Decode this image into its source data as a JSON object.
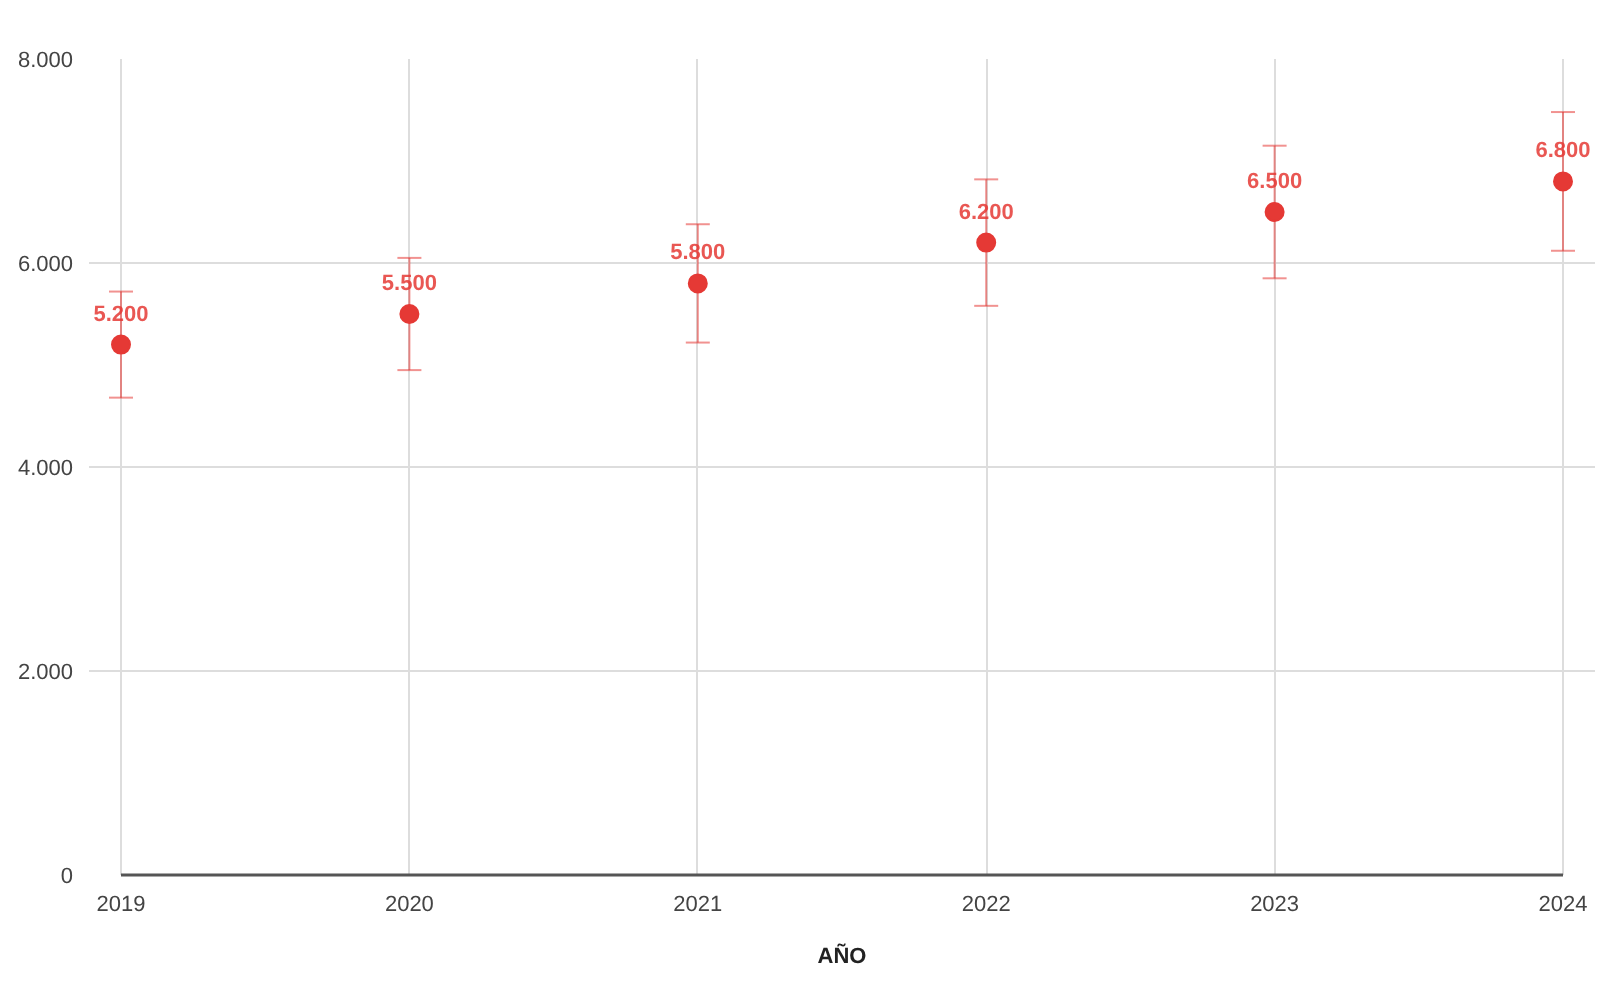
{
  "chart_data": {
    "type": "scatter",
    "xlabel": "AÑO",
    "x": [
      2019,
      2020,
      2021,
      2022,
      2023,
      2024
    ],
    "xlim": [
      2019,
      2024
    ],
    "xticks": [
      2019,
      2020,
      2021,
      2022,
      2023,
      2024
    ],
    "ylim": [
      0,
      8000
    ],
    "yticks": [
      0,
      {
        "value": 2000,
        "label": "2.000"
      },
      {
        "value": 4000,
        "label": "4.000"
      },
      {
        "value": 6000,
        "label": "6.000"
      },
      {
        "value": 8000,
        "label": "8.000"
      }
    ],
    "series": [
      {
        "color": "#e53935",
        "values": [
          5200,
          5500,
          5800,
          6200,
          6500,
          6800
        ],
        "errors": [
          520,
          550,
          580,
          620,
          650,
          680
        ],
        "value_labels": [
          "5.200",
          "5.500",
          "5.800",
          "6.200",
          "6.500",
          "6.800"
        ]
      }
    ],
    "grid": true,
    "marker": "circle"
  }
}
